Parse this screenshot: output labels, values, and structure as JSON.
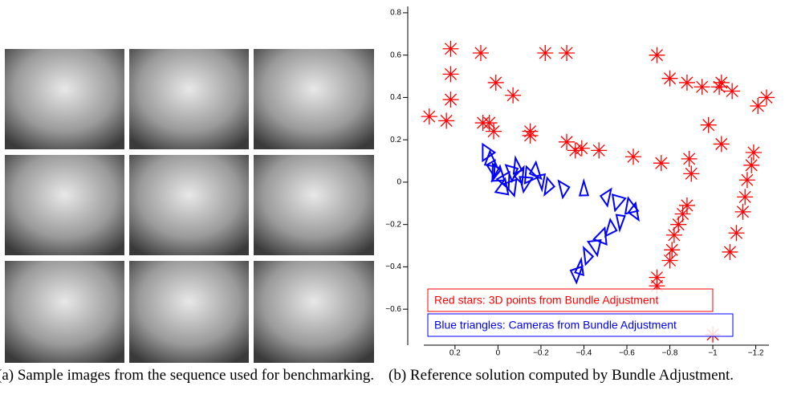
{
  "captions": [
    "(a) Sample images from the sequence used for benchmarking.",
    "(b) Reference solution computed by Bundle Adjustment."
  ],
  "chart_data": {
    "type": "scatter",
    "xlim": [
      0.42,
      -1.28
    ],
    "ylim": [
      -0.77,
      0.83
    ],
    "xticks": [
      0.2,
      0,
      {
        "value": -0.2,
        "label": "−0.2"
      },
      {
        "value": -0.4,
        "label": "−0.4"
      },
      {
        "value": -0.6,
        "label": "−0.6"
      },
      {
        "value": -0.8,
        "label": "−0.8"
      },
      {
        "value": -1,
        "label": "−1"
      },
      {
        "value": -1.2,
        "label": "−1.2"
      }
    ],
    "yticks": [
      {
        "value": -0.6,
        "label": "−0.6"
      },
      {
        "value": -0.4,
        "label": "−0.4"
      },
      {
        "value": -0.2,
        "label": "−0.2"
      },
      0,
      0.2,
      0.4,
      0.6,
      0.8
    ],
    "series": [
      {
        "name": "Red stars: 3D points from Bundle Adjustment",
        "color": "#ff0000",
        "marker": "star",
        "x": [
          0.22,
          0.22,
          0.22,
          0.32,
          0.24,
          0.01,
          -0.07,
          0.07,
          0.04,
          0.02,
          -0.15,
          -0.15,
          0.08,
          -0.22,
          -0.32,
          -0.74,
          -0.8,
          -0.88,
          -0.95,
          -1.03,
          -1.04,
          -1.09,
          -1.21,
          -1.25,
          -0.98,
          -1.04,
          -0.32,
          -0.36,
          -0.39,
          -0.47,
          -0.63,
          -0.76,
          -0.89,
          -0.9,
          -0.88,
          -0.86,
          -0.84,
          -0.82,
          -0.81,
          -0.8,
          -0.74,
          -0.74,
          -1.19,
          -1.18,
          -1.16,
          -1.15,
          -1.14,
          -1.11,
          -1.08,
          -1.0
        ],
        "y": [
          0.63,
          0.51,
          0.39,
          0.31,
          0.29,
          0.47,
          0.41,
          0.28,
          0.28,
          0.24,
          0.24,
          0.22,
          0.61,
          0.61,
          0.61,
          0.6,
          0.49,
          0.47,
          0.45,
          0.45,
          0.47,
          0.43,
          0.36,
          0.4,
          0.27,
          0.18,
          0.19,
          0.15,
          0.16,
          0.15,
          0.12,
          0.09,
          0.11,
          0.04,
          -0.11,
          -0.15,
          -0.2,
          -0.25,
          -0.32,
          -0.37,
          -0.45,
          -0.49,
          0.14,
          0.08,
          0.01,
          -0.07,
          -0.14,
          -0.24,
          -0.33,
          -0.72
        ]
      },
      {
        "name": "Blue triangles: Cameras from Bundle Adjustment",
        "color": "#0000ff",
        "marker": "triangle",
        "x": [
          0.06,
          0.04,
          0.03,
          0.01,
          -0.01,
          -0.04,
          -0.07,
          -0.09,
          -0.1,
          -0.12,
          -0.14,
          -0.17,
          -0.2,
          -0.24,
          -0.03,
          -0.07,
          -0.31,
          -0.4,
          -0.5,
          -0.55,
          -0.61,
          -0.63,
          -0.57,
          -0.53,
          -0.49,
          -0.46,
          -0.42,
          -0.38,
          -0.36
        ],
        "y": [
          0.14,
          0.1,
          0.07,
          0.05,
          0.03,
          0.01,
          0.05,
          0.07,
          0.03,
          0.0,
          0.03,
          0.05,
          0.01,
          -0.02,
          -0.03,
          -0.02,
          -0.03,
          -0.04,
          -0.07,
          -0.09,
          -0.12,
          -0.14,
          -0.18,
          -0.22,
          -0.26,
          -0.3,
          -0.35,
          -0.41,
          -0.43
        ]
      }
    ]
  }
}
